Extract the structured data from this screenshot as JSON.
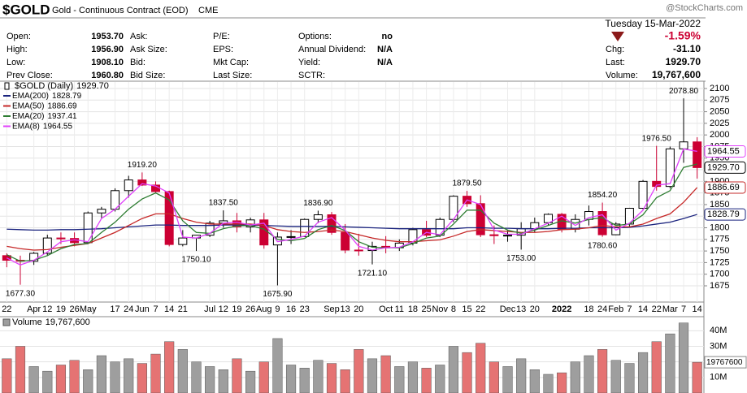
{
  "header": {
    "symbol": "$GOLD",
    "description": "Gold - Continuous Contract (EOD)",
    "exchange": "CME",
    "date": "Tuesday  15-Mar-2022",
    "watermark": "@StockCharts.com",
    "quote": {
      "columns": [
        [
          {
            "label": "Open:",
            "value": "1953.70"
          },
          {
            "label": "High:",
            "value": "1956.90"
          },
          {
            "label": "Low:",
            "value": "1908.10"
          },
          {
            "label": "Prev Close:",
            "value": "1960.80"
          }
        ],
        [
          {
            "label": "Ask:"
          },
          {
            "label": "Ask Size:"
          },
          {
            "label": "Bid:"
          },
          {
            "label": "Bid Size:"
          }
        ],
        [
          {
            "label": "P/E:"
          },
          {
            "label": "EPS:"
          },
          {
            "label": "Mkt Cap:"
          },
          {
            "label": "Last Size:"
          }
        ],
        [
          {
            "label": "Options:",
            "value": "no"
          },
          {
            "label": "Annual Dividend:",
            "value": "N/A"
          },
          {
            "label": "Yield:",
            "value": "N/A"
          },
          {
            "label": "SCTR:"
          }
        ]
      ],
      "change_pct": "-1.59%",
      "summary": [
        {
          "label": "Chg:",
          "value": "-31.10"
        },
        {
          "label": "Last:",
          "value": "1929.70"
        },
        {
          "label": "Volume:",
          "value": "19,767,600"
        }
      ]
    }
  },
  "chart_data": [
    {
      "type": "candlestick",
      "name": "$GOLD (Daily)",
      "legend_label": "1929.70",
      "up_color": "#000000",
      "down_color": "#cc0033",
      "categories": [
        "22",
        null,
        "Apr",
        "12",
        "19",
        "26",
        "May",
        null,
        "17",
        "24",
        "Jun",
        "7",
        "14",
        "21",
        null,
        "Jul",
        "12",
        "19",
        "26",
        "Aug",
        "9",
        "16",
        "23",
        null,
        "Sep",
        "13",
        "20",
        null,
        "Oct",
        "11",
        "18",
        "25",
        "Nov",
        "8",
        "15",
        "22",
        null,
        "Dec",
        "13",
        "20",
        null,
        "2022",
        null,
        "18",
        "24",
        "Feb",
        "7",
        "14",
        "22",
        "Mar",
        "7",
        "14"
      ],
      "open": [
        1740,
        1730,
        1728,
        1745,
        1778,
        1777,
        1768,
        1832,
        1840,
        1880,
        1903,
        1892,
        1878,
        1764,
        1778,
        1784,
        1810,
        1815,
        1802,
        1817,
        1763,
        1780,
        1781,
        1818,
        1828,
        1790,
        1752,
        1751,
        1760,
        1757,
        1767,
        1796,
        1784,
        1818,
        1868,
        1852,
        1785,
        1783,
        1784,
        1798,
        1811,
        1829,
        1797,
        1818,
        1835,
        1785,
        1808,
        1842,
        1900,
        1889,
        1970,
        1985
      ],
      "high": [
        1745,
        1740,
        1748,
        1785,
        1790,
        1790,
        1835,
        1845,
        1885,
        1912,
        1919.2,
        1900,
        1880,
        1795,
        1784,
        1815,
        1837.5,
        1832,
        1822,
        1832,
        1790,
        1795,
        1820,
        1836.9,
        1834,
        1808,
        1787,
        1770,
        1782,
        1775,
        1800,
        1815,
        1822,
        1870,
        1879.5,
        1870,
        1805,
        1795,
        1812,
        1822,
        1831,
        1832,
        1829,
        1848,
        1854.2,
        1812,
        1843,
        1903,
        1976.5,
        1975,
        2078.8,
        1995
      ],
      "low": [
        1715,
        1677.3,
        1720,
        1740,
        1765,
        1760,
        1766,
        1820,
        1835,
        1865,
        1890,
        1875,
        1760,
        1760,
        1750.1,
        1780,
        1800,
        1790,
        1790,
        1755,
        1675.9,
        1765,
        1780,
        1810,
        1785,
        1745,
        1740,
        1721.1,
        1745,
        1750,
        1762,
        1780,
        1780,
        1812,
        1845,
        1780,
        1765,
        1770,
        1753,
        1790,
        1805,
        1790,
        1790,
        1805,
        1780.6,
        1784,
        1800,
        1840,
        1880,
        1885,
        1940,
        1906
      ],
      "close": [
        1730,
        1728,
        1745,
        1778,
        1777,
        1768,
        1832,
        1840,
        1880,
        1903,
        1892,
        1878,
        1764,
        1778,
        1784,
        1810,
        1815,
        1802,
        1817,
        1763,
        1780,
        1781,
        1818,
        1828,
        1790,
        1752,
        1751,
        1760,
        1757,
        1767,
        1796,
        1784,
        1818,
        1868,
        1852,
        1785,
        1783,
        1784,
        1798,
        1811,
        1829,
        1797,
        1818,
        1835,
        1785,
        1808,
        1842,
        1900,
        1889,
        1970,
        1985,
        1929.7
      ],
      "series": [
        {
          "name": "EMA(200)",
          "color": "#1a237e",
          "values": [
            1797,
            1796,
            1795,
            1795,
            1796,
            1796,
            1797,
            1798,
            1800,
            1802,
            1804,
            1806,
            1806,
            1805,
            1805,
            1805,
            1806,
            1806,
            1806,
            1805,
            1804,
            1803,
            1803,
            1803,
            1803,
            1802,
            1801,
            1800,
            1799,
            1798,
            1798,
            1798,
            1798,
            1798,
            1800,
            1800,
            1799,
            1799,
            1798,
            1798,
            1798,
            1799,
            1799,
            1800,
            1800,
            1800,
            1801,
            1804,
            1808,
            1812,
            1820,
            1828.79
          ]
        },
        {
          "name": "EMA(50)",
          "color": "#c62828",
          "values": [
            1760,
            1755,
            1752,
            1753,
            1758,
            1762,
            1766,
            1778,
            1790,
            1805,
            1820,
            1830,
            1830,
            1820,
            1812,
            1808,
            1808,
            1808,
            1808,
            1805,
            1796,
            1792,
            1790,
            1792,
            1795,
            1792,
            1785,
            1778,
            1773,
            1770,
            1770,
            1772,
            1774,
            1782,
            1792,
            1796,
            1794,
            1792,
            1790,
            1790,
            1792,
            1796,
            1797,
            1800,
            1805,
            1802,
            1802,
            1808,
            1820,
            1830,
            1855,
            1886.69
          ]
        },
        {
          "name": "EMA(20)",
          "color": "#2e7d32",
          "values": [
            1742,
            1728,
            1730,
            1740,
            1755,
            1764,
            1766,
            1790,
            1812,
            1840,
            1862,
            1875,
            1860,
            1815,
            1790,
            1788,
            1798,
            1804,
            1805,
            1797,
            1775,
            1772,
            1777,
            1796,
            1805,
            1794,
            1770,
            1758,
            1757,
            1757,
            1766,
            1778,
            1782,
            1808,
            1838,
            1838,
            1810,
            1795,
            1788,
            1795,
            1805,
            1815,
            1810,
            1818,
            1822,
            1805,
            1808,
            1828,
            1865,
            1880,
            1930,
            1937.41
          ]
        },
        {
          "name": "EMA(8)",
          "color": "#e040fb",
          "values": [
            1735,
            1720,
            1730,
            1748,
            1770,
            1774,
            1770,
            1820,
            1840,
            1868,
            1895,
            1890,
            1875,
            1780,
            1778,
            1788,
            1810,
            1812,
            1806,
            1810,
            1770,
            1775,
            1782,
            1812,
            1822,
            1795,
            1760,
            1752,
            1757,
            1758,
            1770,
            1790,
            1785,
            1818,
            1860,
            1850,
            1795,
            1786,
            1786,
            1798,
            1810,
            1825,
            1805,
            1822,
            1828,
            1795,
            1810,
            1838,
            1892,
            1895,
            1970,
            1964.55
          ]
        }
      ],
      "annotations": [
        {
          "label": "1677.30",
          "value": 1677.3,
          "week": 1,
          "side": "low"
        },
        {
          "label": "1919.20",
          "value": 1919.2,
          "week": 10,
          "side": "high"
        },
        {
          "label": "1750.10",
          "value": 1750.1,
          "week": 14,
          "side": "low"
        },
        {
          "label": "1837.50",
          "value": 1837.5,
          "week": 16,
          "side": "high"
        },
        {
          "label": "1675.90",
          "value": 1675.9,
          "week": 20,
          "side": "low"
        },
        {
          "label": "1836.90",
          "value": 1836.9,
          "week": 23,
          "side": "high"
        },
        {
          "label": "1721.10",
          "value": 1721.1,
          "week": 27,
          "side": "low"
        },
        {
          "label": "1879.50",
          "value": 1879.5,
          "week": 34,
          "side": "high"
        },
        {
          "label": "1753.00",
          "value": 1753,
          "week": 38,
          "side": "low"
        },
        {
          "label": "1854.20",
          "value": 1854.2,
          "week": 44,
          "side": "high"
        },
        {
          "label": "1780.60",
          "value": 1780.6,
          "week": 44,
          "side": "low"
        },
        {
          "label": "1976.50",
          "value": 1976.5,
          "week": 48,
          "side": "high"
        },
        {
          "label": "2078.80",
          "value": 2078.8,
          "week": 50,
          "side": "high"
        }
      ],
      "ylim": [
        1640,
        2114
      ],
      "yticks": [
        1675,
        1700,
        1725,
        1750,
        1775,
        1800,
        1825,
        1850,
        1875,
        1900,
        1925,
        1950,
        1975,
        2000,
        2025,
        2050,
        2075,
        2100
      ],
      "grid": true
    },
    {
      "type": "bar",
      "legend_value": "19,767,600",
      "up_color": "#9e9e9e",
      "down_color": "#e57373",
      "series": [
        {
          "name": "Volume",
          "values": [
            22000000,
            30000000,
            17000000,
            14000000,
            18000000,
            21000000,
            15000000,
            24000000,
            20000000,
            22000000,
            19000000,
            25000000,
            33000000,
            28000000,
            20000000,
            17000000,
            15000000,
            22000000,
            14000000,
            20000000,
            35000000,
            18000000,
            16000000,
            21000000,
            19000000,
            15000000,
            28000000,
            22000000,
            24000000,
            17000000,
            20000000,
            16000000,
            18000000,
            30000000,
            26000000,
            32000000,
            20000000,
            17000000,
            22000000,
            15000000,
            12000000,
            13000000,
            20000000,
            24000000,
            28000000,
            21000000,
            19000000,
            26000000,
            33000000,
            38000000,
            45000000,
            19767600
          ]
        }
      ],
      "ylim": [
        0,
        48000000
      ],
      "yticks": [
        {
          "value": 10000000,
          "label": "10M"
        },
        {
          "value": 20000000,
          "label": "20M"
        },
        {
          "value": 30000000,
          "label": "30M"
        },
        {
          "value": 40000000,
          "label": "40M"
        }
      ],
      "grid": true
    }
  ]
}
